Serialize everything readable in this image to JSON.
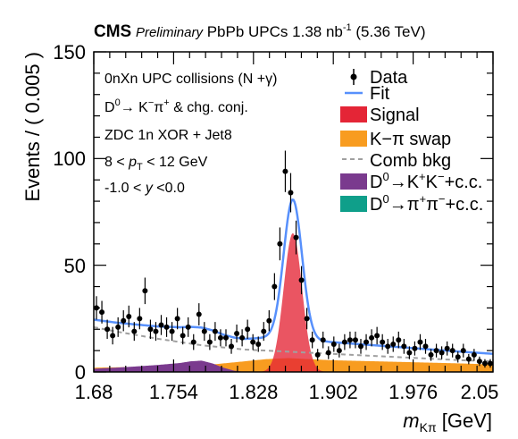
{
  "header": {
    "experiment": "CMS",
    "status": "Preliminary",
    "dataset": "PbPb UPCs 1.38 nb",
    "lumi_exp": "-1",
    "energy": "(5.36 TeV)"
  },
  "annotations": {
    "line1_main": "0nXn UPC collisions (N",
    "line1_end": "+γ)",
    "line2_d": "D",
    "line2_sup": "0",
    "line2_rest": "→ K",
    "line2_k_sup": "−",
    "line2_pi": "π",
    "line2_pi_sup": "+",
    "line2_end": "& chg. conj.",
    "line3": "ZDC 1n XOR + Jet8",
    "line4_start": "8 <",
    "line4_p": "p",
    "line4_sub": "T",
    "line4_end": "< 12 GeV",
    "line5_start": "-1.0 <",
    "line5_y": "y",
    "line5_end": "<0.0"
  },
  "legend": {
    "data": "Data",
    "fit": "Fit",
    "signal": "Signal",
    "swap": "K−π swap",
    "comb": "Comb bkg",
    "kk_d": "D",
    "kk_d_sup": "0",
    "kk_arrow": "→K",
    "kk_sup1": "+",
    "kk_k": "K",
    "kk_sup2": "−",
    "kk_end": "+c.c.",
    "pipi_d": "D",
    "pipi_d_sup": "0",
    "pipi_arrow": "→π",
    "pipi_sup1": "+",
    "pipi_pi": "π",
    "pipi_sup2": "−",
    "pipi_end": "+c.c."
  },
  "colors": {
    "data": "#000000",
    "fit": "#5790fc",
    "signal": "#e42536",
    "swap": "#f89c20",
    "comb": "#a0a0a0",
    "kk": "#7a3a8e",
    "pipi": "#0f9f8a"
  },
  "chart_data": {
    "type": "scatter",
    "xlabel": "m",
    "xlabel_sub": "Kπ",
    "xlabel_unit": "[GeV]",
    "ylabel": "Events / ( 0.005 )",
    "xlim": [
      1.68,
      2.05
    ],
    "ylim": [
      0,
      150
    ],
    "x_ticks": [
      "1.68",
      "1.754",
      "1.828",
      "1.902",
      "1.976",
      "2.05"
    ],
    "y_ticks": [
      "0",
      "50",
      "100",
      "150"
    ],
    "data_points": {
      "x": [
        1.6825,
        1.6875,
        1.6925,
        1.6975,
        1.7025,
        1.7075,
        1.7125,
        1.7175,
        1.7225,
        1.7275,
        1.7325,
        1.7375,
        1.7425,
        1.7475,
        1.7525,
        1.7575,
        1.7625,
        1.7675,
        1.7725,
        1.7775,
        1.7825,
        1.7875,
        1.7925,
        1.7975,
        1.8025,
        1.8075,
        1.8125,
        1.8175,
        1.8225,
        1.8275,
        1.8325,
        1.8375,
        1.8425,
        1.8475,
        1.8525,
        1.8575,
        1.8625,
        1.8675,
        1.8725,
        1.8775,
        1.8825,
        1.8875,
        1.8925,
        1.8975,
        1.9025,
        1.9075,
        1.9125,
        1.9175,
        1.9225,
        1.9275,
        1.9325,
        1.9375,
        1.9425,
        1.9475,
        1.9525,
        1.9575,
        1.9625,
        1.9675,
        1.9725,
        1.9775,
        1.9825,
        1.9875,
        1.9925,
        1.9975,
        2.0025,
        2.0075,
        2.0125,
        2.0175,
        2.0225,
        2.0275,
        2.0325,
        2.0375,
        2.0425,
        2.0475
      ],
      "y": [
        30,
        28,
        20,
        17,
        21,
        24,
        26,
        19,
        25,
        38,
        20,
        19,
        22,
        21,
        19,
        25,
        17,
        21,
        14,
        27,
        19,
        14,
        19,
        16,
        16,
        12,
        18,
        16,
        20,
        14,
        13,
        19,
        24,
        40,
        60,
        94,
        84,
        63,
        43,
        25,
        15,
        8,
        15,
        9,
        13,
        10,
        14,
        15,
        15,
        12,
        14,
        16,
        17,
        14,
        12,
        13,
        15,
        12,
        9,
        11,
        14,
        12,
        8,
        10,
        9,
        11,
        10,
        7,
        10,
        6,
        8,
        5,
        4,
        4
      ],
      "yerr": [
        5.5,
        5.3,
        4.5,
        4.1,
        4.6,
        4.9,
        5.1,
        4.4,
        5.0,
        6.2,
        4.5,
        4.4,
        4.7,
        4.6,
        4.4,
        5.0,
        4.1,
        4.6,
        3.7,
        5.2,
        4.4,
        3.7,
        4.4,
        4.0,
        4.0,
        3.5,
        4.2,
        4.0,
        4.5,
        3.7,
        3.6,
        4.4,
        4.9,
        6.3,
        7.7,
        9.7,
        9.2,
        7.9,
        6.6,
        5.0,
        3.9,
        2.8,
        3.9,
        3.0,
        3.6,
        3.2,
        3.7,
        3.9,
        3.9,
        3.5,
        3.7,
        4.0,
        4.1,
        3.7,
        3.5,
        3.6,
        3.9,
        3.5,
        3.0,
        3.3,
        3.7,
        3.5,
        2.8,
        3.2,
        3.0,
        3.3,
        3.2,
        2.6,
        3.2,
        2.4,
        2.8,
        2.2,
        2.0,
        2.0
      ]
    },
    "signal": {
      "mean": 1.8645,
      "sigma": 0.0085,
      "amplitude": 65
    },
    "comb_bkg": {
      "x": [
        1.68,
        1.7,
        1.74,
        1.78,
        1.82,
        1.86,
        1.9,
        1.94,
        1.98,
        2.02,
        2.05
      ],
      "y": [
        21,
        19,
        15.5,
        12.5,
        10.5,
        9.5,
        8.5,
        7.5,
        6.5,
        5.5,
        5
      ]
    },
    "swap_bkg": {
      "x": [
        1.68,
        1.74,
        1.78,
        1.8,
        1.82,
        1.84,
        1.86,
        1.88,
        1.9,
        1.94,
        1.98,
        2.02,
        2.05
      ],
      "y": [
        2,
        2.5,
        3,
        4,
        5,
        6,
        6.5,
        6,
        5.5,
        5,
        4.5,
        4,
        3.5
      ]
    },
    "kk_bkg": {
      "x": [
        1.68,
        1.7,
        1.72,
        1.74,
        1.76,
        1.77,
        1.78,
        1.79,
        1.8,
        1.81,
        1.82,
        2.05
      ],
      "y": [
        1.5,
        2.0,
        2.6,
        3.3,
        4.2,
        5.0,
        5.3,
        4.0,
        2.0,
        0.6,
        0,
        0
      ]
    },
    "pipi_bkg": {
      "x": [
        1.68,
        2.05
      ],
      "y": [
        0,
        0
      ]
    }
  }
}
